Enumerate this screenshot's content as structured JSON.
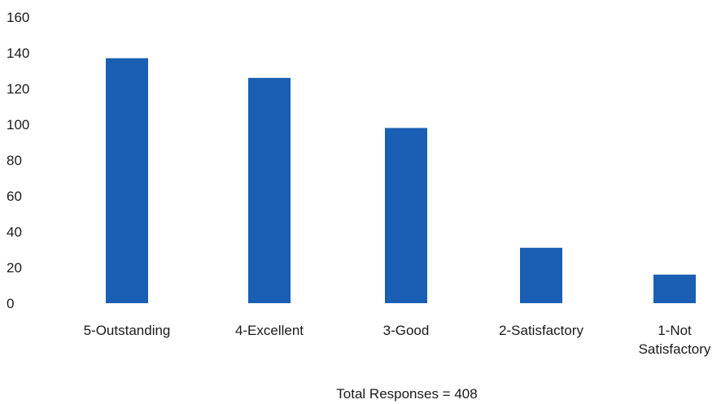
{
  "chart_data": {
    "type": "bar",
    "categories": [
      "5-Outstanding",
      "4-Excellent",
      "3-Good",
      "2-Satisfactory",
      "1-Not Satisfactory"
    ],
    "category_lines": [
      [
        "5-Outstanding"
      ],
      [
        "4-Excellent"
      ],
      [
        "3-Good"
      ],
      [
        "2-Satisfactory"
      ],
      [
        "1-Not",
        "Satisfactory"
      ]
    ],
    "values": [
      137,
      126,
      98,
      31,
      16
    ],
    "ylim": [
      0,
      160
    ],
    "yticks": [
      0,
      20,
      40,
      60,
      80,
      100,
      120,
      140,
      160
    ],
    "xlabel": "Total Responses = 408",
    "ylabel": "",
    "title": "",
    "grid": false,
    "bar_color": "#1b5fb4"
  }
}
